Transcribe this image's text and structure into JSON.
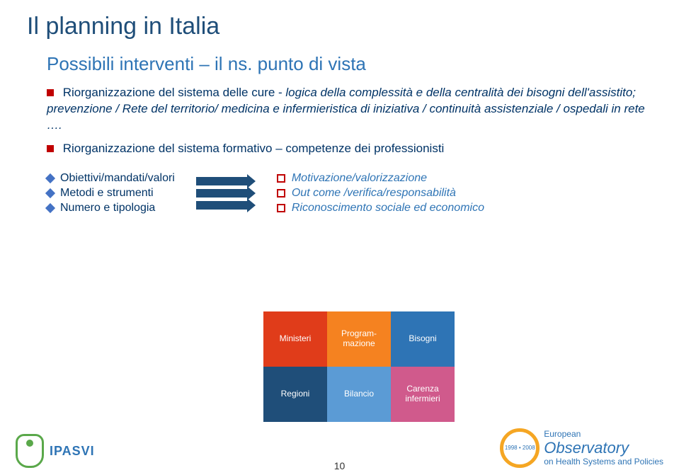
{
  "title": "Il planning in Italia",
  "subtitle": "Possibili interventi – il ns. punto di vista",
  "block1": {
    "lead": "Riorganizzazione del sistema delle cure - ",
    "body": "logica della complessità e della centralità dei bisogni dell'assistito; prevenzione / Rete del territorio/ medicina e infermieristica di iniziativa / continuità assistenziale / ospedali in rete …."
  },
  "block2": "Riorganizzazione del sistema formativo – competenze dei professionisti",
  "leftList": [
    "Obiettivi/mandati/valori",
    "Metodi e strumenti",
    "Numero e tipologia"
  ],
  "rightList": [
    "Motivazione/valorizzazione",
    "Out come /verifica/responsabilità",
    "Riconoscimento sociale ed economico"
  ],
  "puzzle": {
    "row1": [
      "Ministeri",
      "Program-\nmazione",
      "Bisogni"
    ],
    "row2": [
      "Regioni",
      "Bilancio",
      "Carenza\ninfermieri"
    ],
    "colors": {
      "row1": [
        "#e03c1a",
        "#f58220",
        "#2e74b5"
      ],
      "row2": [
        "#1f4e79",
        "#5b9bd5",
        "#d05a8c"
      ]
    }
  },
  "footer": {
    "ipasvi": "IPASVI",
    "pageNum": "10",
    "obsRing": "1998 • 2008",
    "obsLine1": "European",
    "obsLine2": "Observatory",
    "obsLine3": "on Health Systems and Policies"
  }
}
